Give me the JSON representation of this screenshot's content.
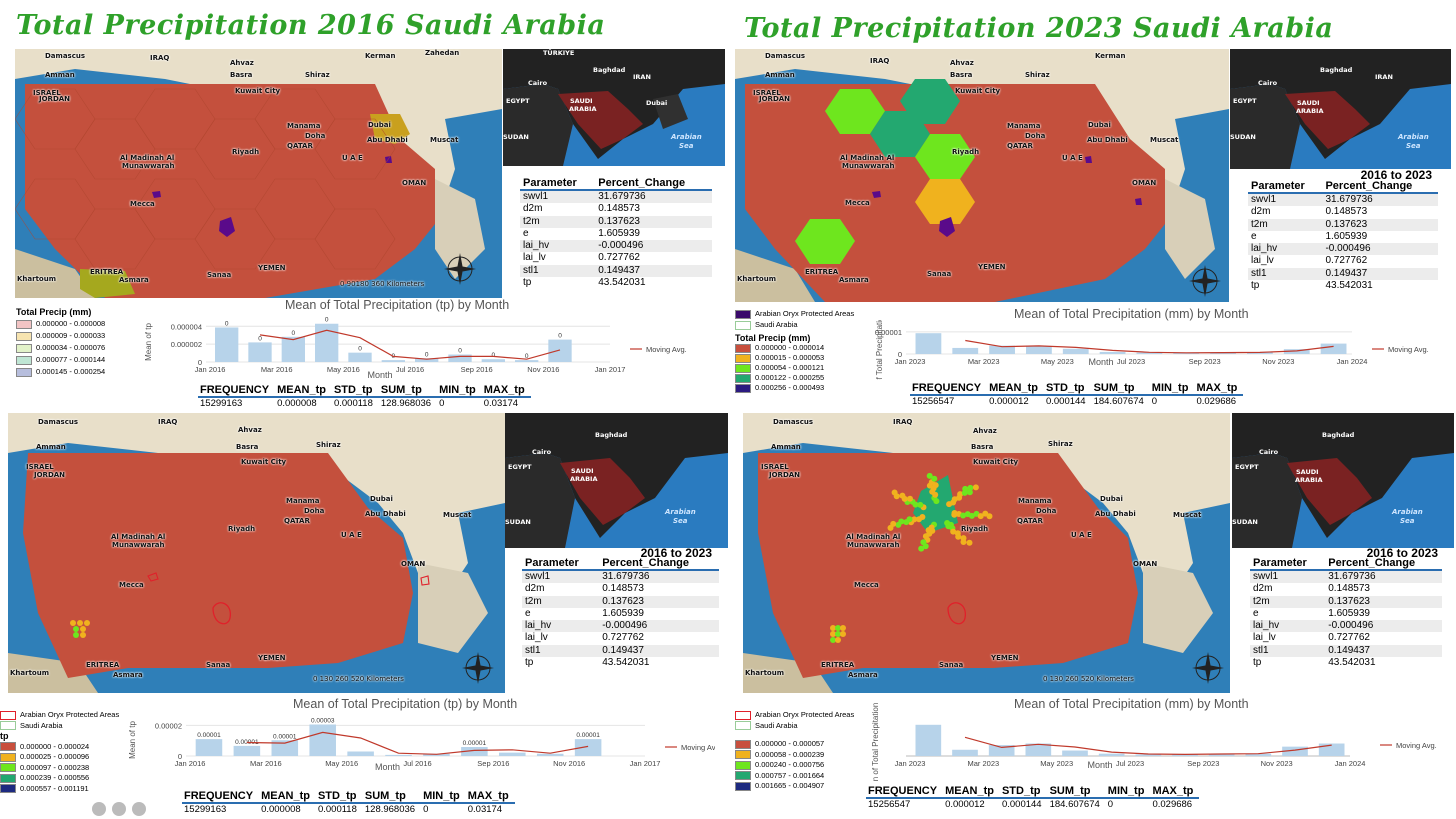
{
  "titles": {
    "left": "Total Precipitation 2016 Saudi Arabia",
    "right": "Total Precipitation 2023 Saudi Arabia"
  },
  "map_labels": {
    "damascus": "Damascus",
    "iraq": "IRAQ",
    "ahvaz": "Ahvaz",
    "zahedan": "Zahedan",
    "kerman": "Kerman",
    "amman": "Amman",
    "basra": "Basra",
    "shiraz": "Shiraz",
    "israel": "ISRAEL",
    "jordan": "JORDAN",
    "kuwait": "Kuwait City",
    "manama": "Manama",
    "doha": "Doha",
    "qatar": "QATAR",
    "dubai": "Dubai",
    "abudhabi": "Abu Dhabi",
    "muscat": "Muscat",
    "uae": "U A E",
    "madinah1": "Al Madinah Al",
    "madinah2": "Munawwarah",
    "riyadh": "Riyadh",
    "oman": "OMAN",
    "mecca": "Mecca",
    "eritrea": "ERITREA",
    "asmara": "Asmara",
    "sanaa": "Sanaa",
    "yemen": "YEMEN",
    "khartoum": "Khartoum",
    "arabian_sea": "Arabian Sea"
  },
  "inset_labels": {
    "turkiye": "TÜRKIYE",
    "baghdad": "Baghdad",
    "cairo": "Cairo",
    "iran": "IRAN",
    "egypt": "EGYPT",
    "saudi": "SAUDI",
    "arabia": "ARABIA",
    "dubai": "Dubai",
    "sudan": "SUDAN",
    "arabian": "Arabian",
    "sea": "Sea"
  },
  "scalebars": {
    "top_left": "0   90180      360 Kilometers",
    "bottom_left": "0   130 260          520 Kilometers",
    "bottom_right": "0   130 260          520 Kilometers"
  },
  "param_table": {
    "heading": "2016 to 2023",
    "col1": "Parameter",
    "col2": "Percent_Change",
    "rows": [
      [
        "swvl1",
        "31.679736"
      ],
      [
        "d2m",
        "0.148573"
      ],
      [
        "t2m",
        "0.137623"
      ],
      [
        "e",
        "1.605939"
      ],
      [
        "lai_hv",
        "-0.000496"
      ],
      [
        "lai_lv",
        "0.727762"
      ],
      [
        "stl1",
        "0.149437"
      ],
      [
        "tp",
        "43.542031"
      ]
    ]
  },
  "legends": {
    "tl": {
      "title": "Total Precip (mm)",
      "items": [
        {
          "label": "0.000000 - 0.000008",
          "color": "#f2c4c4"
        },
        {
          "label": "0.000009 - 0.000033",
          "color": "#f7e4b0"
        },
        {
          "label": "0.000034 - 0.000076",
          "color": "#e2f2c9"
        },
        {
          "label": "0.000077 - 0.000144",
          "color": "#bfe6d4"
        },
        {
          "label": "0.000145 - 0.000254",
          "color": "#b7bedd"
        }
      ]
    },
    "tr": {
      "oryx": "Arabian Oryx Protected Areas",
      "saudi": "Saudi Arabia",
      "title": "Total Precip (mm)",
      "items": [
        {
          "label": "0.000000 - 0.000014",
          "color": "#c84f3d"
        },
        {
          "label": "0.000015 - 0.000053",
          "color": "#f0b21e"
        },
        {
          "label": "0.000054 - 0.000121",
          "color": "#6ee61e"
        },
        {
          "label": "0.000122 - 0.000255",
          "color": "#23a870"
        },
        {
          "label": "0.000256 - 0.000493",
          "color": "#2b1a80"
        }
      ]
    },
    "bl": {
      "oryx": "Arabian Oryx Protected Areas",
      "saudi": "Saudi Arabia",
      "title": "tp",
      "items": [
        {
          "label": "0.000000 - 0.000024",
          "color": "#c84f3d"
        },
        {
          "label": "0.000025 - 0.000096",
          "color": "#f0b21e"
        },
        {
          "label": "0.000097 - 0.000238",
          "color": "#6ee61e"
        },
        {
          "label": "0.000239 - 0.000556",
          "color": "#23a870"
        },
        {
          "label": "0.000557 - 0.001191",
          "color": "#1d2a80"
        }
      ]
    },
    "br": {
      "oryx": "Arabian Oryx Protected Areas",
      "saudi": "Saudi Arabia",
      "items": [
        {
          "label": "0.000000 - 0.000057",
          "color": "#c84f3d"
        },
        {
          "label": "0.000058 - 0.000239",
          "color": "#f0b21e"
        },
        {
          "label": "0.000240 - 0.000756",
          "color": "#6ee61e"
        },
        {
          "label": "0.000757 - 0.001664",
          "color": "#23a870"
        },
        {
          "label": "0.001665 - 0.004907",
          "color": "#1d2a80"
        }
      ]
    }
  },
  "stats": {
    "headers": [
      "FREQUENCY",
      "MEAN_tp",
      "STD_tp",
      "SUM_tp",
      "MIN_tp",
      "MAX_tp"
    ],
    "y2016": [
      "15299163",
      "0.000008",
      "0.000118",
      "128.968036",
      "0",
      "0.03174"
    ],
    "y2023": [
      "15256547",
      "0.000012",
      "0.000144",
      "184.607674",
      "0",
      "0.029686"
    ]
  },
  "chart_data": [
    {
      "type": "bar",
      "title": "Mean of Total Precipitation (tp) by Month",
      "xlabel": "Month",
      "ylabel": "Mean of tp",
      "x_ticks": [
        "Jan 2016",
        "Mar 2016",
        "May 2016",
        "Jul 2016",
        "Sep 2016",
        "Nov 2016",
        "Jan 2017"
      ],
      "y_ticks": [
        "0",
        "0.000002",
        "0.000004"
      ],
      "ylim": [
        0,
        4.5e-06
      ],
      "values": [
        3.7e-06,
        2.1e-06,
        2.7e-06,
        4.1e-06,
        1e-06,
        2e-07,
        4e-07,
        8e-07,
        3e-07,
        2e-07,
        2.4e-06
      ],
      "data_labels": [
        "0",
        "0",
        "0",
        "0",
        "0",
        "0",
        "0",
        "0",
        "0",
        "0",
        "0"
      ],
      "line": {
        "name": "Moving Avg.",
        "values": [
          null,
          2.9e-06,
          2.4e-06,
          3.4e-06,
          2.6e-06,
          6e-07,
          3e-07,
          6e-07,
          6e-07,
          3e-07,
          1.3e-06
        ]
      }
    },
    {
      "type": "bar",
      "title": "Mean of Total Precipitation (mm) by Month",
      "xlabel": "Month",
      "ylabel": "of Total Precipitation",
      "x_ticks": [
        "Jan 2023",
        "Mar 2023",
        "May 2023",
        "Jul 2023",
        "Sep 2023",
        "Nov 2023",
        "Jan 2024"
      ],
      "y_ticks": [
        "0",
        "0.00001"
      ],
      "ylim": [
        0,
        1.5e-05
      ],
      "values": [
        1.2e-05,
        3.5e-06,
        4.8e-06,
        4.5e-06,
        3e-06,
        1.2e-06,
        8e-07,
        6e-07,
        1e-06,
        9e-07,
        2.8e-06,
        6e-06
      ],
      "line": {
        "name": "Moving Avg.",
        "values": [
          null,
          7.8e-06,
          4.2e-06,
          4.7e-06,
          3.8e-06,
          2.1e-06,
          1e-06,
          7e-07,
          8e-07,
          9e-07,
          1.8e-06,
          4.4e-06
        ]
      }
    },
    {
      "type": "bar",
      "title": "Mean of Total Precipitation (tp) by Month",
      "xlabel": "Month",
      "ylabel": "Mean of tp",
      "x_ticks": [
        "Jan 2016",
        "Mar 2016",
        "May 2016",
        "Jul 2016",
        "Sep 2016",
        "Nov 2016",
        "Jan 2017"
      ],
      "y_ticks": [
        "0",
        "0.00002"
      ],
      "ylim": [
        0,
        3.2e-05
      ],
      "values": [
        1.5e-05,
        9e-06,
        1.4e-05,
        2.8e-05,
        4e-06,
        1e-06,
        2e-06,
        8e-06,
        3e-06,
        2e-06,
        1.5e-05
      ],
      "data_labels": [
        "0.00001",
        "0.00001",
        "0.00001",
        "0.00003",
        "",
        "",
        "",
        "0.00001",
        "",
        "",
        "0.00001"
      ],
      "line": {
        "name": "Moving Avg",
        "values": [
          null,
          1.2e-05,
          1.15e-05,
          2.1e-05,
          1.6e-05,
          2.5e-06,
          1.5e-06,
          5e-06,
          5.5e-06,
          2.5e-06,
          8.5e-06
        ]
      }
    },
    {
      "type": "bar",
      "title": "Mean of Total Precipitation (mm) by Month",
      "xlabel": "Month",
      "ylabel": "n of Total Precipitation",
      "x_ticks": [
        "Jan 2023",
        "Mar 2023",
        "May 2023",
        "Jul 2023",
        "Sep 2023",
        "Nov 2023",
        "Jan 2024"
      ],
      "y_ticks": [],
      "ylim": [
        0,
        5e-05
      ],
      "values": [
        4e-05,
        8e-06,
        1.4e-05,
        1.6e-05,
        7e-06,
        3e-06,
        2e-06,
        2e-06,
        3e-06,
        3e-06,
        1.2e-05,
        1.6e-05
      ],
      "line": {
        "name": "Moving Avg.",
        "values": [
          null,
          2.4e-05,
          1.1e-05,
          1.5e-05,
          1.15e-05,
          5e-06,
          2.5e-06,
          2e-06,
          2.5e-06,
          3e-06,
          7.5e-06,
          1.4e-05
        ]
      }
    }
  ]
}
